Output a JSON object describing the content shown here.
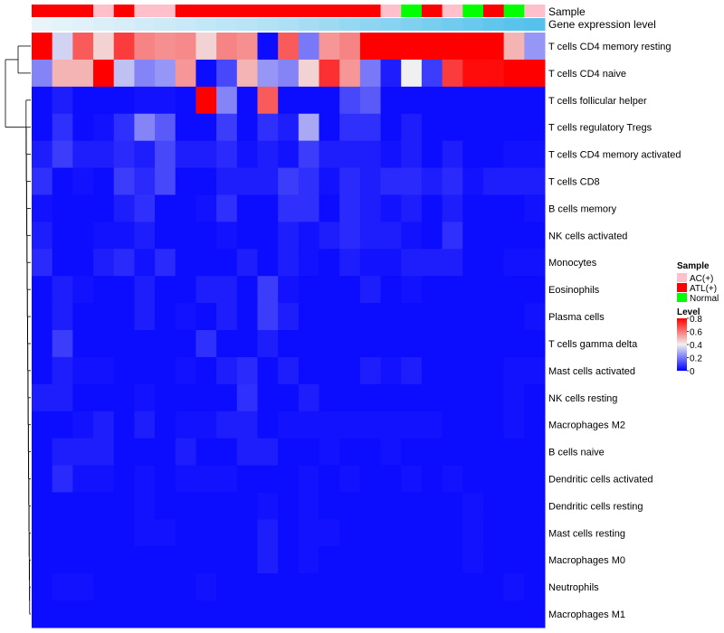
{
  "chart_data": {
    "type": "heatmap",
    "title": "",
    "annotation_rows": {
      "sample_label": "Sample",
      "expression_label": "Gene expression level"
    },
    "columns_sample": [
      "ATL(+)",
      "ATL(+)",
      "ATL(+)",
      "AC(+)",
      "ATL(+)",
      "AC(+)",
      "AC(+)",
      "ATL(+)",
      "ATL(+)",
      "ATL(+)",
      "ATL(+)",
      "ATL(+)",
      "ATL(+)",
      "ATL(+)",
      "ATL(+)",
      "ATL(+)",
      "ATL(+)",
      "AC(+)",
      "Normal",
      "ATL(+)",
      "AC(+)",
      "Normal",
      "ATL(+)",
      "Normal",
      "AC(+)"
    ],
    "expression_level": [
      0.05,
      0.07,
      0.09,
      0.12,
      0.14,
      0.17,
      0.19,
      0.22,
      0.25,
      0.28,
      0.3,
      0.33,
      0.36,
      0.4,
      0.44,
      0.48,
      0.52,
      0.56,
      0.6,
      0.64,
      0.68,
      0.72,
      0.76,
      0.8,
      0.82
    ],
    "rows": [
      {
        "label": "T cells CD4 memory resting",
        "values": [
          0.85,
          0.35,
          0.65,
          0.45,
          0.7,
          0.58,
          0.56,
          0.57,
          0.45,
          0.58,
          0.56,
          0.02,
          0.65,
          0.2,
          0.55,
          0.58,
          0.82,
          0.82,
          0.82,
          0.85,
          0.82,
          0.85,
          0.85,
          0.5,
          0.25
        ]
      },
      {
        "label": "T cells CD4 naive",
        "values": [
          0.22,
          0.5,
          0.5,
          0.8,
          0.32,
          0.22,
          0.25,
          0.55,
          0.02,
          0.12,
          0.5,
          0.25,
          0.22,
          0.45,
          0.72,
          0.55,
          0.2,
          0.05,
          0.4,
          0.1,
          0.7,
          0.78,
          0.78,
          0.8,
          0.8
        ]
      },
      {
        "label": "T cells follicular helper",
        "values": [
          0.02,
          0.05,
          0.02,
          0.02,
          0.02,
          0.03,
          0.03,
          0.02,
          0.82,
          0.22,
          0.02,
          0.65,
          0.02,
          0.02,
          0.02,
          0.12,
          0.15,
          0.02,
          0.02,
          0.02,
          0.02,
          0.02,
          0.02,
          0.02,
          0.02
        ]
      },
      {
        "label": "T cells regulatory  Tregs",
        "values": [
          0.02,
          0.08,
          0.02,
          0.03,
          0.08,
          0.22,
          0.15,
          0.02,
          0.02,
          0.1,
          0.02,
          0.08,
          0.05,
          0.28,
          0.02,
          0.08,
          0.08,
          0.02,
          0.05,
          0.02,
          0.02,
          0.02,
          0.02,
          0.02,
          0.02
        ]
      },
      {
        "label": "T cells CD4 memory activated",
        "values": [
          0.05,
          0.1,
          0.05,
          0.05,
          0.07,
          0.05,
          0.12,
          0.05,
          0.05,
          0.07,
          0.03,
          0.05,
          0.03,
          0.1,
          0.05,
          0.05,
          0.05,
          0.03,
          0.05,
          0.02,
          0.05,
          0.02,
          0.02,
          0.03,
          0.03
        ]
      },
      {
        "label": "T cells CD8",
        "values": [
          0.08,
          0.02,
          0.03,
          0.02,
          0.1,
          0.07,
          0.12,
          0.02,
          0.02,
          0.05,
          0.05,
          0.05,
          0.1,
          0.08,
          0.03,
          0.07,
          0.05,
          0.07,
          0.07,
          0.05,
          0.07,
          0.03,
          0.05,
          0.05,
          0.05
        ]
      },
      {
        "label": "B cells memory",
        "values": [
          0.03,
          0.02,
          0.02,
          0.02,
          0.05,
          0.08,
          0.02,
          0.02,
          0.03,
          0.08,
          0.02,
          0.02,
          0.08,
          0.08,
          0.02,
          0.07,
          0.05,
          0.03,
          0.05,
          0.02,
          0.05,
          0.02,
          0.02,
          0.02,
          0.03
        ]
      },
      {
        "label": "NK cells activated",
        "values": [
          0.05,
          0.02,
          0.02,
          0.03,
          0.03,
          0.05,
          0.02,
          0.02,
          0.02,
          0.03,
          0.02,
          0.02,
          0.05,
          0.03,
          0.05,
          0.07,
          0.05,
          0.05,
          0.03,
          0.02,
          0.08,
          0.02,
          0.02,
          0.02,
          0.02
        ]
      },
      {
        "label": "Monocytes",
        "values": [
          0.07,
          0.02,
          0.02,
          0.05,
          0.07,
          0.03,
          0.07,
          0.02,
          0.02,
          0.02,
          0.05,
          0.02,
          0.05,
          0.03,
          0.02,
          0.05,
          0.03,
          0.03,
          0.05,
          0.05,
          0.05,
          0.02,
          0.02,
          0.03,
          0.03
        ]
      },
      {
        "label": "Eosinophils",
        "values": [
          0.02,
          0.05,
          0.03,
          0.02,
          0.02,
          0.05,
          0.02,
          0.02,
          0.05,
          0.05,
          0.02,
          0.1,
          0.03,
          0.02,
          0.02,
          0.02,
          0.05,
          0.02,
          0.03,
          0.02,
          0.02,
          0.02,
          0.02,
          0.02,
          0.02
        ]
      },
      {
        "label": "Plasma cells",
        "values": [
          0.02,
          0.05,
          0.02,
          0.02,
          0.02,
          0.05,
          0.02,
          0.03,
          0.02,
          0.05,
          0.02,
          0.1,
          0.05,
          0.02,
          0.02,
          0.02,
          0.02,
          0.02,
          0.02,
          0.02,
          0.02,
          0.02,
          0.02,
          0.02,
          0.03
        ]
      },
      {
        "label": "T cells gamma delta",
        "values": [
          0.02,
          0.1,
          0.02,
          0.02,
          0.02,
          0.02,
          0.02,
          0.02,
          0.08,
          0.02,
          0.02,
          0.05,
          0.02,
          0.02,
          0.02,
          0.02,
          0.02,
          0.02,
          0.02,
          0.02,
          0.02,
          0.02,
          0.02,
          0.02,
          0.02
        ]
      },
      {
        "label": "Mast cells activated",
        "values": [
          0.02,
          0.05,
          0.03,
          0.03,
          0.02,
          0.02,
          0.02,
          0.03,
          0.02,
          0.05,
          0.07,
          0.02,
          0.05,
          0.02,
          0.02,
          0.02,
          0.05,
          0.03,
          0.05,
          0.02,
          0.02,
          0.02,
          0.02,
          0.03,
          0.03
        ]
      },
      {
        "label": "NK cells resting",
        "values": [
          0.05,
          0.05,
          0.02,
          0.02,
          0.02,
          0.03,
          0.02,
          0.02,
          0.02,
          0.02,
          0.08,
          0.02,
          0.02,
          0.05,
          0.02,
          0.02,
          0.02,
          0.02,
          0.02,
          0.02,
          0.02,
          0.02,
          0.02,
          0.03,
          0.02
        ]
      },
      {
        "label": "Macrophages M2",
        "values": [
          0.02,
          0.02,
          0.03,
          0.05,
          0.02,
          0.05,
          0.02,
          0.03,
          0.03,
          0.05,
          0.05,
          0.02,
          0.03,
          0.03,
          0.03,
          0.03,
          0.03,
          0.03,
          0.03,
          0.03,
          0.02,
          0.02,
          0.02,
          0.03,
          0.02
        ]
      },
      {
        "label": "B cells naive",
        "values": [
          0.02,
          0.05,
          0.05,
          0.05,
          0.02,
          0.02,
          0.02,
          0.05,
          0.02,
          0.02,
          0.05,
          0.05,
          0.02,
          0.02,
          0.03,
          0.02,
          0.02,
          0.03,
          0.02,
          0.02,
          0.02,
          0.02,
          0.02,
          0.02,
          0.02
        ]
      },
      {
        "label": "Dendritic cells activated",
        "values": [
          0.02,
          0.07,
          0.03,
          0.03,
          0.02,
          0.03,
          0.02,
          0.03,
          0.03,
          0.03,
          0.02,
          0.02,
          0.02,
          0.03,
          0.02,
          0.03,
          0.02,
          0.02,
          0.03,
          0.02,
          0.03,
          0.02,
          0.02,
          0.02,
          0.02
        ]
      },
      {
        "label": "Dendritic cells resting",
        "values": [
          0.02,
          0.02,
          0.02,
          0.02,
          0.02,
          0.03,
          0.02,
          0.02,
          0.02,
          0.02,
          0.02,
          0.03,
          0.02,
          0.03,
          0.02,
          0.02,
          0.02,
          0.02,
          0.02,
          0.02,
          0.02,
          0.03,
          0.02,
          0.02,
          0.02
        ]
      },
      {
        "label": "Mast cells resting",
        "values": [
          0.02,
          0.02,
          0.02,
          0.02,
          0.02,
          0.03,
          0.03,
          0.02,
          0.02,
          0.02,
          0.02,
          0.05,
          0.02,
          0.03,
          0.03,
          0.02,
          0.02,
          0.02,
          0.02,
          0.02,
          0.02,
          0.03,
          0.02,
          0.02,
          0.02
        ]
      },
      {
        "label": "Macrophages M0",
        "values": [
          0.02,
          0.02,
          0.02,
          0.02,
          0.02,
          0.02,
          0.02,
          0.02,
          0.02,
          0.02,
          0.02,
          0.05,
          0.02,
          0.03,
          0.02,
          0.02,
          0.02,
          0.02,
          0.02,
          0.02,
          0.02,
          0.03,
          0.02,
          0.02,
          0.02
        ]
      },
      {
        "label": "Neutrophils",
        "values": [
          0.02,
          0.03,
          0.03,
          0.02,
          0.02,
          0.02,
          0.02,
          0.02,
          0.03,
          0.02,
          0.02,
          0.02,
          0.02,
          0.02,
          0.02,
          0.02,
          0.02,
          0.02,
          0.02,
          0.02,
          0.02,
          0.02,
          0.02,
          0.03,
          0.02
        ]
      },
      {
        "label": "Macrophages M1",
        "values": [
          0.02,
          0.02,
          0.02,
          0.02,
          0.02,
          0.02,
          0.02,
          0.02,
          0.02,
          0.02,
          0.02,
          0.02,
          0.02,
          0.02,
          0.02,
          0.02,
          0.02,
          0.02,
          0.02,
          0.02,
          0.02,
          0.02,
          0.02,
          0.02,
          0.02
        ]
      }
    ],
    "legend": {
      "sample_title": "Sample",
      "sample_entries": [
        {
          "label": "AC(+)",
          "color": "#ffc0cb"
        },
        {
          "label": "ATL(+)",
          "color": "#ff0000"
        },
        {
          "label": "Normal",
          "color": "#00ff00"
        }
      ],
      "level_title": "Level",
      "level_ticks": [
        0.8,
        0.6,
        0.4,
        0.2,
        0
      ],
      "level_ticks_text": [
        "0.8",
        "0.6",
        "0.4",
        "0.2",
        "0"
      ],
      "range": [
        0,
        0.8
      ],
      "position": "right"
    },
    "colors": {
      "low": "#0000ff",
      "mid": "#f0f0f0",
      "high": "#ff0000",
      "expression_low": "#e8f4fa",
      "expression_high": "#56c2ec",
      "dendrogram": "#000000"
    }
  }
}
